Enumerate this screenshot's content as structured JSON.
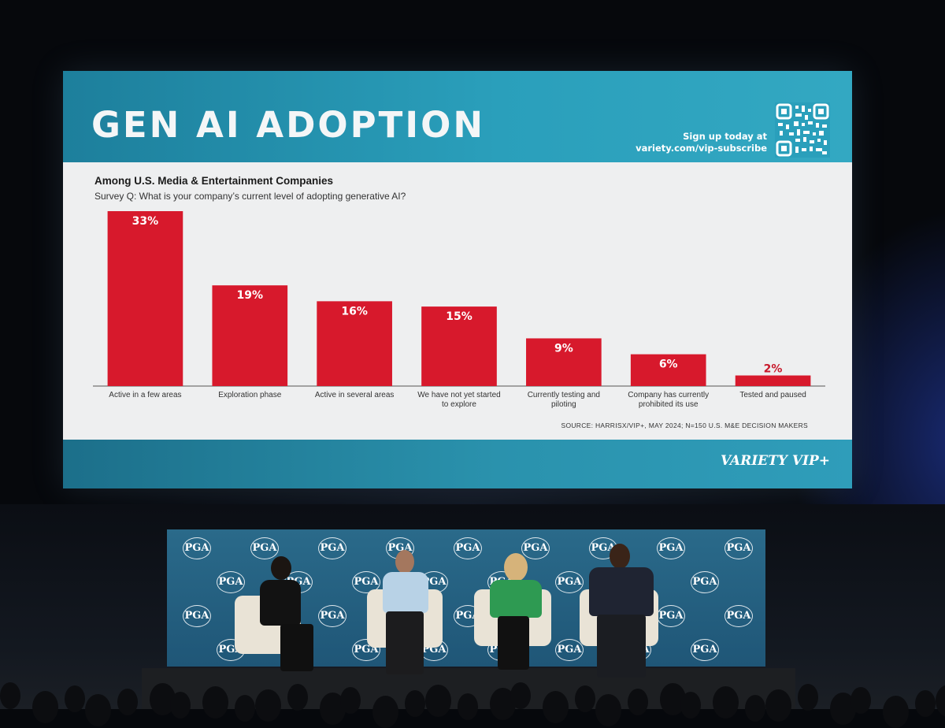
{
  "slide": {
    "title": "GEN AI ADOPTION",
    "signup_line1": "Sign up today at",
    "signup_line2": "variety.com/vip-subscribe",
    "logo": "VARIETY VIP+",
    "source": "SOURCE:  HARRISX/VIP+, MAY 2024; N=150 U.S. M&E DECISION MAKERS"
  },
  "chart_data": {
    "type": "bar",
    "title": "Among U.S. Media & Entertainment Companies",
    "subtitle": "Survey Q: What is your company’s current level of adopting generative AI?",
    "categories": [
      "Active in a few areas",
      "Exploration phase",
      "Active in several areas",
      "We have not yet started to explore",
      "Currently testing and piloting",
      "Company has currently prohibited its use",
      "Tested and paused"
    ],
    "values": [
      33,
      19,
      16,
      15,
      9,
      6,
      2
    ],
    "value_labels": [
      "33%",
      "19%",
      "16%",
      "15%",
      "9%",
      "6%",
      "2%"
    ],
    "unit": "%",
    "ylim": [
      0,
      33
    ],
    "bar_color": "#d7192c",
    "highlight_label_color": "#c8192b",
    "grid": false,
    "legend": "none",
    "xlabel": "",
    "ylabel": ""
  },
  "stage": {
    "backdrop_logo": "PGA",
    "backdrop_color": "#25607f"
  }
}
